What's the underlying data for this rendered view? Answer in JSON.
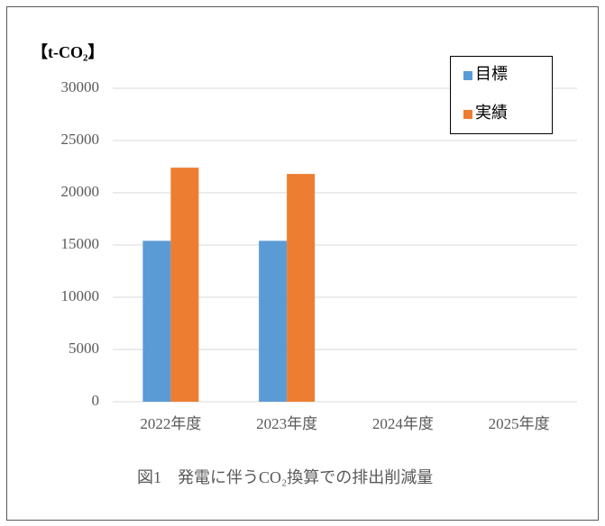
{
  "chart_data": {
    "type": "bar",
    "y_axis_label": "【t-CO₂】",
    "caption": "図1　発電に伴うCO₂換算での排出削減量",
    "categories": [
      "2022年度",
      "2023年度",
      "2024年度",
      "2025年度"
    ],
    "series": [
      {
        "name": "目標",
        "color": "#5b9bd5",
        "values": [
          15400,
          15400,
          null,
          null
        ]
      },
      {
        "name": "実績",
        "color": "#ed7d31",
        "values": [
          22400,
          21800,
          null,
          null
        ]
      }
    ],
    "ylim": [
      0,
      30000
    ],
    "yticks": [
      0,
      5000,
      10000,
      15000,
      20000,
      25000,
      30000
    ],
    "grid": true,
    "legend": "upper right"
  }
}
